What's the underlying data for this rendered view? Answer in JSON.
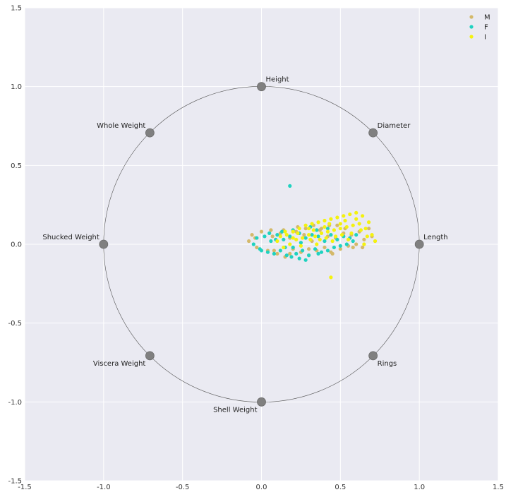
{
  "chart_data": {
    "type": "scatter",
    "title": "",
    "xlabel": "",
    "ylabel": "",
    "xlim": [
      -1.5,
      1.5
    ],
    "ylim": [
      -1.5,
      1.5
    ],
    "grid": true,
    "legend_position": "top-right",
    "x_ticks": [
      "-1.5",
      "-1.0",
      "-0.5",
      "0.0",
      "0.5",
      "1.0",
      "1.5"
    ],
    "y_ticks": [
      "-1.5",
      "-1.0",
      "-0.5",
      "0.0",
      "0.5",
      "1.0",
      "1.5"
    ],
    "x_tick_values": [
      -1.5,
      -1.0,
      -0.5,
      0.0,
      0.5,
      1.0,
      1.5
    ],
    "y_tick_values": [
      -1.5,
      -1.0,
      -0.5,
      0.0,
      0.5,
      1.0,
      1.5
    ],
    "unit_circle_radius": 1.0,
    "anchors": [
      {
        "name": "Length",
        "x": 1.0,
        "y": 0.0
      },
      {
        "name": "Diameter",
        "x": 0.707,
        "y": 0.707
      },
      {
        "name": "Height",
        "x": 0.0,
        "y": 1.0
      },
      {
        "name": "Whole Weight",
        "x": -0.707,
        "y": 0.707
      },
      {
        "name": "Shucked Weight",
        "x": -1.0,
        "y": 0.0
      },
      {
        "name": "Viscera Weight",
        "x": -0.707,
        "y": -0.707
      },
      {
        "name": "Shell Weight",
        "x": 0.0,
        "y": -1.0
      },
      {
        "name": "Rings",
        "x": 0.707,
        "y": -0.707
      }
    ],
    "series": [
      {
        "name": "M",
        "color": "#d4b96a",
        "points": [
          [
            -0.08,
            0.02
          ],
          [
            -0.06,
            0.06
          ],
          [
            -0.03,
            -0.02
          ],
          [
            0.0,
            0.08
          ],
          [
            0.04,
            -0.04
          ],
          [
            0.07,
            0.05
          ],
          [
            0.1,
            -0.06
          ],
          [
            0.12,
            0.07
          ],
          [
            0.15,
            -0.08
          ],
          [
            0.18,
            0.04
          ],
          [
            0.2,
            -0.03
          ],
          [
            0.22,
            0.08
          ],
          [
            0.25,
            -0.05
          ],
          [
            0.27,
            0.06
          ],
          [
            0.3,
            -0.07
          ],
          [
            0.32,
            0.02
          ],
          [
            0.35,
            -0.04
          ],
          [
            0.37,
            0.09
          ],
          [
            0.4,
            -0.02
          ],
          [
            0.42,
            0.05
          ],
          [
            0.45,
            -0.06
          ],
          [
            0.47,
            0.04
          ],
          [
            0.5,
            -0.03
          ],
          [
            0.52,
            0.07
          ],
          [
            0.55,
            -0.01
          ],
          [
            0.57,
            0.06
          ],
          [
            0.6,
            0.0
          ],
          [
            0.62,
            0.08
          ],
          [
            0.65,
            0.03
          ],
          [
            0.68,
            0.1
          ],
          [
            0.7,
            0.05
          ],
          [
            0.72,
            0.02
          ],
          [
            0.58,
            -0.02
          ],
          [
            0.48,
            0.12
          ],
          [
            0.38,
            0.1
          ],
          [
            0.28,
            0.1
          ],
          [
            0.14,
            0.09
          ],
          [
            0.06,
            0.09
          ],
          [
            -0.04,
            0.04
          ],
          [
            0.44,
            -0.05
          ],
          [
            0.3,
            -0.03
          ],
          [
            0.18,
            -0.06
          ],
          [
            0.08,
            -0.04
          ],
          [
            0.64,
            -0.02
          ],
          [
            0.53,
            0.1
          ],
          [
            0.43,
            0.12
          ],
          [
            0.33,
            0.12
          ],
          [
            0.23,
            0.11
          ]
        ]
      },
      {
        "name": "F",
        "color": "#1fd2c0",
        "points": [
          [
            0.18,
            0.37
          ],
          [
            -0.05,
            0.0
          ],
          [
            -0.03,
            0.04
          ],
          [
            -0.01,
            -0.03
          ],
          [
            0.02,
            0.05
          ],
          [
            0.04,
            -0.05
          ],
          [
            0.06,
            0.02
          ],
          [
            0.08,
            -0.06
          ],
          [
            0.1,
            0.06
          ],
          [
            0.12,
            -0.04
          ],
          [
            0.14,
            0.03
          ],
          [
            0.16,
            -0.07
          ],
          [
            0.18,
            0.05
          ],
          [
            0.2,
            -0.02
          ],
          [
            0.22,
            -0.06
          ],
          [
            0.24,
            0.07
          ],
          [
            0.26,
            -0.04
          ],
          [
            0.28,
            0.04
          ],
          [
            0.3,
            -0.07
          ],
          [
            0.32,
            0.06
          ],
          [
            0.34,
            -0.03
          ],
          [
            0.36,
            0.05
          ],
          [
            0.38,
            -0.05
          ],
          [
            0.4,
            0.02
          ],
          [
            0.42,
            -0.04
          ],
          [
            0.44,
            0.06
          ],
          [
            0.46,
            -0.02
          ],
          [
            0.48,
            0.03
          ],
          [
            0.5,
            -0.01
          ],
          [
            0.52,
            0.05
          ],
          [
            0.54,
            0.0
          ],
          [
            0.56,
            0.04
          ],
          [
            0.58,
            0.02
          ],
          [
            0.6,
            0.06
          ],
          [
            0.28,
            -0.1
          ],
          [
            0.24,
            -0.09
          ],
          [
            0.05,
            0.07
          ],
          [
            0.0,
            -0.04
          ],
          [
            0.13,
            0.08
          ],
          [
            0.19,
            -0.08
          ],
          [
            0.35,
            0.09
          ],
          [
            0.42,
            0.1
          ],
          [
            0.31,
            0.11
          ],
          [
            0.2,
            0.09
          ],
          [
            0.09,
            0.03
          ],
          [
            0.15,
            -0.02
          ],
          [
            0.25,
            0.01
          ],
          [
            0.36,
            -0.06
          ]
        ]
      },
      {
        "name": "I",
        "color": "#f4f20e",
        "points": [
          [
            0.44,
            -0.21
          ],
          [
            0.1,
            0.02
          ],
          [
            0.12,
            0.05
          ],
          [
            0.14,
            -0.02
          ],
          [
            0.16,
            0.06
          ],
          [
            0.18,
            0.0
          ],
          [
            0.2,
            0.08
          ],
          [
            0.22,
            0.03
          ],
          [
            0.24,
            0.1
          ],
          [
            0.26,
            0.04
          ],
          [
            0.28,
            0.12
          ],
          [
            0.3,
            0.06
          ],
          [
            0.32,
            0.13
          ],
          [
            0.34,
            0.05
          ],
          [
            0.36,
            0.14
          ],
          [
            0.38,
            0.07
          ],
          [
            0.4,
            0.15
          ],
          [
            0.42,
            0.08
          ],
          [
            0.44,
            0.16
          ],
          [
            0.46,
            0.09
          ],
          [
            0.48,
            0.17
          ],
          [
            0.5,
            0.1
          ],
          [
            0.52,
            0.18
          ],
          [
            0.54,
            0.11
          ],
          [
            0.56,
            0.19
          ],
          [
            0.58,
            0.12
          ],
          [
            0.6,
            0.2
          ],
          [
            0.62,
            0.13
          ],
          [
            0.64,
            0.18
          ],
          [
            0.66,
            0.1
          ],
          [
            0.68,
            0.14
          ],
          [
            0.7,
            0.06
          ],
          [
            0.72,
            0.02
          ],
          [
            0.65,
            0.0
          ],
          [
            0.55,
            0.03
          ],
          [
            0.45,
            0.02
          ],
          [
            0.35,
            0.0
          ],
          [
            0.25,
            -0.01
          ],
          [
            0.3,
            0.1
          ],
          [
            0.4,
            0.11
          ],
          [
            0.5,
            0.13
          ],
          [
            0.6,
            0.16
          ],
          [
            0.2,
            0.04
          ],
          [
            0.15,
            0.08
          ],
          [
            0.37,
            0.03
          ],
          [
            0.47,
            0.05
          ],
          [
            0.57,
            0.07
          ],
          [
            0.67,
            0.05
          ],
          [
            0.53,
            0.15
          ],
          [
            0.43,
            0.13
          ],
          [
            0.33,
            0.09
          ],
          [
            0.23,
            0.07
          ],
          [
            0.63,
            0.09
          ],
          [
            0.41,
            0.04
          ],
          [
            0.51,
            0.06
          ],
          [
            0.31,
            0.03
          ]
        ]
      }
    ]
  }
}
